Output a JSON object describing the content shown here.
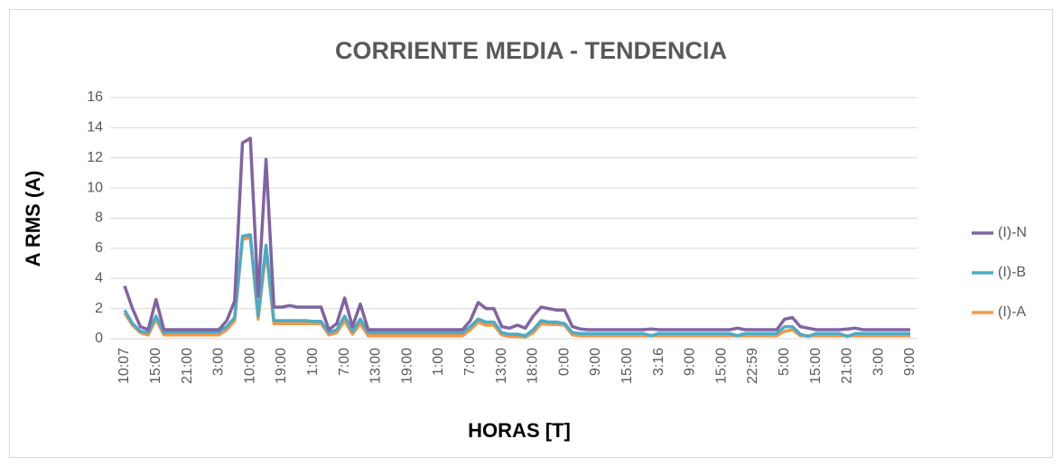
{
  "chart_data": {
    "type": "line",
    "title": "CORRIENTE MEDIA - TENDENCIA",
    "x_label": "HORAS [T]",
    "y_label": "A RMS (A)",
    "categories": [
      "10:07",
      null,
      null,
      null,
      "15:00",
      null,
      null,
      null,
      "21:00",
      null,
      null,
      null,
      "3:00",
      null,
      null,
      null,
      "10:00",
      null,
      null,
      null,
      "19:00",
      null,
      null,
      null,
      "1:00",
      null,
      null,
      null,
      "7:00",
      null,
      null,
      null,
      "13:00",
      null,
      null,
      null,
      "19:00",
      null,
      null,
      null,
      "1:00",
      null,
      null,
      null,
      "7:00",
      null,
      null,
      null,
      "13:00",
      null,
      null,
      null,
      "18:00",
      null,
      null,
      null,
      "0:00",
      null,
      null,
      null,
      "9:00",
      null,
      null,
      null,
      "15:00",
      null,
      null,
      null,
      "3:16",
      null,
      null,
      null,
      "9:00",
      null,
      null,
      null,
      "15:00",
      null,
      null,
      null,
      "22:59",
      null,
      null,
      null,
      "5:00",
      null,
      null,
      null,
      "15:00",
      null,
      null,
      null,
      "21:00",
      null,
      null,
      null,
      "3:00",
      null,
      null,
      null,
      "9:00"
    ],
    "series": [
      {
        "name": "(I)-N",
        "color": "#8064a2",
        "values": [
          3.5,
          2.0,
          0.8,
          0.6,
          2.6,
          0.6,
          0.6,
          0.6,
          0.6,
          0.6,
          0.6,
          0.6,
          0.6,
          1.2,
          2.5,
          13.0,
          13.3,
          2.8,
          11.9,
          2.1,
          2.1,
          2.2,
          2.1,
          2.1,
          2.1,
          2.1,
          0.6,
          1.0,
          2.7,
          0.8,
          2.3,
          0.6,
          0.6,
          0.6,
          0.6,
          0.6,
          0.6,
          0.6,
          0.6,
          0.6,
          0.6,
          0.6,
          0.6,
          0.6,
          1.2,
          2.4,
          2.0,
          2.0,
          0.8,
          0.7,
          0.9,
          0.7,
          1.5,
          2.1,
          2.0,
          1.9,
          1.9,
          0.8,
          0.65,
          0.6,
          0.6,
          0.6,
          0.6,
          0.6,
          0.6,
          0.6,
          0.6,
          0.65,
          0.6,
          0.6,
          0.6,
          0.6,
          0.6,
          0.6,
          0.6,
          0.6,
          0.6,
          0.6,
          0.7,
          0.6,
          0.6,
          0.6,
          0.6,
          0.6,
          1.3,
          1.4,
          0.8,
          0.7,
          0.6,
          0.6,
          0.6,
          0.6,
          0.65,
          0.7,
          0.6,
          0.6,
          0.6,
          0.6,
          0.6,
          0.6,
          0.6
        ]
      },
      {
        "name": "(I)-B",
        "color": "#4bacc6",
        "values": [
          1.9,
          1.0,
          0.5,
          0.4,
          1.5,
          0.4,
          0.45,
          0.45,
          0.45,
          0.45,
          0.45,
          0.45,
          0.45,
          0.8,
          1.4,
          6.8,
          6.9,
          1.5,
          6.2,
          1.2,
          1.2,
          1.2,
          1.2,
          1.2,
          1.15,
          1.15,
          0.4,
          0.6,
          1.5,
          0.5,
          1.3,
          0.4,
          0.4,
          0.4,
          0.4,
          0.4,
          0.4,
          0.4,
          0.4,
          0.4,
          0.4,
          0.4,
          0.4,
          0.4,
          0.8,
          1.3,
          1.1,
          1.1,
          0.4,
          0.3,
          0.3,
          0.2,
          0.6,
          1.2,
          1.1,
          1.1,
          1.0,
          0.4,
          0.35,
          0.35,
          0.35,
          0.35,
          0.35,
          0.35,
          0.35,
          0.35,
          0.35,
          0.2,
          0.35,
          0.35,
          0.35,
          0.35,
          0.35,
          0.35,
          0.35,
          0.35,
          0.35,
          0.35,
          0.2,
          0.35,
          0.35,
          0.35,
          0.35,
          0.35,
          0.8,
          0.8,
          0.3,
          0.15,
          0.35,
          0.35,
          0.35,
          0.35,
          0.15,
          0.35,
          0.35,
          0.35,
          0.35,
          0.35,
          0.35,
          0.35,
          0.35
        ]
      },
      {
        "name": "(I)-A",
        "color": "#f79646",
        "values": [
          1.7,
          0.9,
          0.4,
          0.25,
          1.3,
          0.25,
          0.25,
          0.25,
          0.25,
          0.25,
          0.25,
          0.25,
          0.25,
          0.6,
          1.2,
          6.6,
          6.7,
          1.3,
          5.9,
          1.0,
          1.0,
          1.0,
          1.0,
          1.0,
          1.0,
          1.0,
          0.25,
          0.4,
          1.2,
          0.3,
          1.0,
          0.2,
          0.2,
          0.2,
          0.2,
          0.2,
          0.2,
          0.2,
          0.2,
          0.2,
          0.2,
          0.2,
          0.2,
          0.2,
          0.6,
          1.1,
          0.9,
          0.9,
          0.25,
          0.15,
          0.15,
          0.1,
          0.4,
          1.0,
          0.95,
          0.95,
          0.9,
          0.25,
          0.2,
          0.2,
          0.2,
          0.2,
          0.2,
          0.2,
          0.2,
          0.2,
          0.2,
          0.2,
          0.2,
          0.2,
          0.2,
          0.2,
          0.2,
          0.2,
          0.2,
          0.2,
          0.2,
          0.2,
          0.2,
          0.2,
          0.2,
          0.2,
          0.2,
          0.2,
          0.5,
          0.6,
          0.2,
          0.2,
          0.2,
          0.2,
          0.2,
          0.2,
          0.2,
          0.2,
          0.2,
          0.2,
          0.2,
          0.2,
          0.2,
          0.2,
          0.2
        ]
      }
    ],
    "ylim": [
      0,
      16
    ],
    "yticks": [
      0,
      2,
      4,
      6,
      8,
      10,
      12,
      14,
      16
    ],
    "grid": true,
    "legend": "right"
  }
}
